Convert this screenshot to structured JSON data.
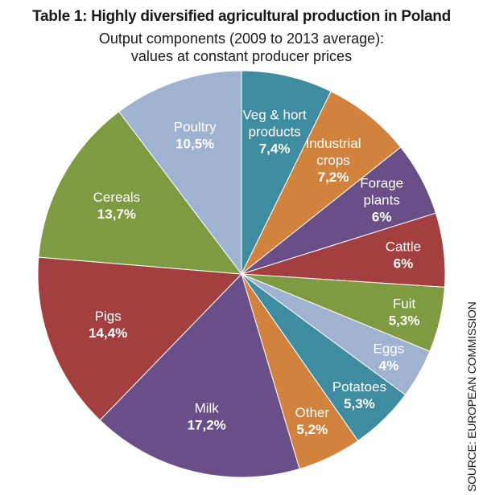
{
  "title": "Table 1: Highly diversified agricultural production in Poland",
  "subtitle_lines": [
    "Output components (2009 to 2013 average):",
    "values at constant producer prices"
  ],
  "source": "SOURCE: EUROPEAN COMMISSION",
  "chart_data": {
    "type": "pie",
    "title": "Table 1: Highly diversified agricultural production in Poland",
    "subtitle": "Output components (2009 to 2013 average): values at constant producer prices",
    "unit": "%",
    "start_angle_deg": 0,
    "direction": "clockwise",
    "slices": [
      {
        "label_lines": [
          "Veg & hort",
          "products"
        ],
        "value": 7.4,
        "value_label": "7,4%",
        "color": "#3e8ca0"
      },
      {
        "label_lines": [
          "Industrial",
          "crops"
        ],
        "value": 7.2,
        "value_label": "7,2%",
        "color": "#d1823c"
      },
      {
        "label_lines": [
          "Forage",
          "plants"
        ],
        "value": 6,
        "value_label": "6%",
        "color": "#6a4e87"
      },
      {
        "label_lines": [
          "Cattle"
        ],
        "value": 6,
        "value_label": "6%",
        "color": "#a33f3f"
      },
      {
        "label_lines": [
          "Fuit"
        ],
        "value": 5.3,
        "value_label": "5,3%",
        "color": "#7f9b41"
      },
      {
        "label_lines": [
          "Eggs"
        ],
        "value": 4,
        "value_label": "4%",
        "color": "#9fb2d0"
      },
      {
        "label_lines": [
          "Potatoes"
        ],
        "value": 5.3,
        "value_label": "5,3%",
        "color": "#3e8ca0"
      },
      {
        "label_lines": [
          "Other"
        ],
        "value": 5.2,
        "value_label": "5,2%",
        "color": "#d1823c"
      },
      {
        "label_lines": [
          "Milk"
        ],
        "value": 17.2,
        "value_label": "17,2%",
        "color": "#6a4e87"
      },
      {
        "label_lines": [
          "Pigs"
        ],
        "value": 14.4,
        "value_label": "14,4%",
        "color": "#a33f3f"
      },
      {
        "label_lines": [
          "Cereals"
        ],
        "value": 13.7,
        "value_label": "13,7%",
        "color": "#7f9b41"
      },
      {
        "label_lines": [
          "Poultry"
        ],
        "value": 10.5,
        "value_label": "10,5%",
        "color": "#9fb2d0"
      }
    ]
  }
}
